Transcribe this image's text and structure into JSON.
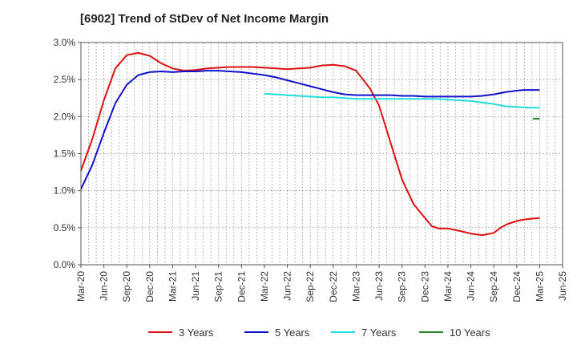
{
  "chart_data": {
    "type": "line",
    "title": "[6902]  Trend of StDev of Net Income Margin",
    "xlabel": "",
    "ylabel": "",
    "ylim": [
      0,
      3.0
    ],
    "y_ticks": [
      "0.0%",
      "0.5%",
      "1.0%",
      "1.5%",
      "2.0%",
      "2.5%",
      "3.0%"
    ],
    "y_tick_values": [
      0,
      0.5,
      1.0,
      1.5,
      2.0,
      2.5,
      3.0
    ],
    "x_ticks": [
      "Mar-20",
      "Jun-20",
      "Sep-20",
      "Dec-20",
      "Mar-21",
      "Jun-21",
      "Sep-21",
      "Dec-21",
      "Mar-22",
      "Jun-22",
      "Sep-22",
      "Dec-22",
      "Mar-23",
      "Jun-23",
      "Sep-23",
      "Dec-23",
      "Mar-24",
      "Jun-24",
      "Sep-24",
      "Dec-24",
      "Mar-25",
      "Jun-25"
    ],
    "grid": true,
    "legend_position": "bottom",
    "series": [
      {
        "name": "3 Years",
        "color": "#dd1111",
        "x": [
          0,
          0.5,
          1,
          1.5,
          2,
          2.5,
          3,
          3.5,
          4,
          4.5,
          5,
          5.5,
          6,
          6.5,
          7,
          7.5,
          8,
          8.5,
          9,
          9.5,
          10,
          10.5,
          11,
          11.5,
          12,
          12.3,
          12.6,
          13,
          13.3,
          13.6,
          14,
          14.5,
          15,
          15.3,
          15.6,
          16,
          16.3,
          16.6,
          17,
          17.5,
          18,
          18.3,
          18.6,
          19,
          19.3,
          19.6,
          20
        ],
        "values": [
          1.27,
          1.7,
          2.22,
          2.65,
          2.83,
          2.86,
          2.82,
          2.72,
          2.65,
          2.62,
          2.63,
          2.65,
          2.66,
          2.67,
          2.67,
          2.67,
          2.66,
          2.65,
          2.64,
          2.65,
          2.66,
          2.69,
          2.7,
          2.68,
          2.62,
          2.5,
          2.38,
          2.15,
          1.85,
          1.55,
          1.15,
          0.82,
          0.63,
          0.52,
          0.49,
          0.49,
          0.47,
          0.45,
          0.42,
          0.4,
          0.43,
          0.5,
          0.55,
          0.59,
          0.61,
          0.62,
          0.63
        ]
      },
      {
        "name": "5 Years",
        "color": "#1111cc",
        "x": [
          0,
          0.5,
          1,
          1.5,
          2,
          2.5,
          3,
          3.5,
          4,
          4.5,
          5,
          5.5,
          6,
          6.5,
          7,
          7.5,
          8,
          8.5,
          9,
          9.5,
          10,
          10.5,
          11,
          11.5,
          12,
          12.5,
          13,
          13.5,
          14,
          14.5,
          15,
          15.5,
          16,
          16.5,
          17,
          17.5,
          18,
          18.5,
          19,
          19.3,
          19.6,
          20
        ],
        "values": [
          1.02,
          1.35,
          1.78,
          2.18,
          2.43,
          2.56,
          2.6,
          2.61,
          2.6,
          2.61,
          2.61,
          2.62,
          2.62,
          2.61,
          2.6,
          2.58,
          2.56,
          2.53,
          2.49,
          2.45,
          2.41,
          2.37,
          2.33,
          2.3,
          2.29,
          2.29,
          2.29,
          2.29,
          2.28,
          2.28,
          2.27,
          2.27,
          2.27,
          2.27,
          2.27,
          2.28,
          2.3,
          2.33,
          2.35,
          2.36,
          2.36,
          2.36
        ]
      },
      {
        "name": "7 Years",
        "color": "#22dddd",
        "x": [
          8,
          8.5,
          9,
          9.5,
          10,
          10.5,
          11,
          11.5,
          12,
          12.5,
          13,
          13.5,
          14,
          14.5,
          15,
          15.5,
          16,
          16.5,
          17,
          17.5,
          18,
          18.5,
          19,
          19.5,
          20
        ],
        "values": [
          2.31,
          2.3,
          2.29,
          2.28,
          2.27,
          2.26,
          2.26,
          2.25,
          2.24,
          2.24,
          2.24,
          2.24,
          2.24,
          2.24,
          2.24,
          2.24,
          2.23,
          2.22,
          2.21,
          2.19,
          2.17,
          2.14,
          2.13,
          2.12,
          2.12
        ]
      },
      {
        "name": "10 Years",
        "color": "#228822",
        "x": [
          19.7,
          20
        ],
        "values": [
          1.97,
          1.97
        ]
      }
    ]
  }
}
